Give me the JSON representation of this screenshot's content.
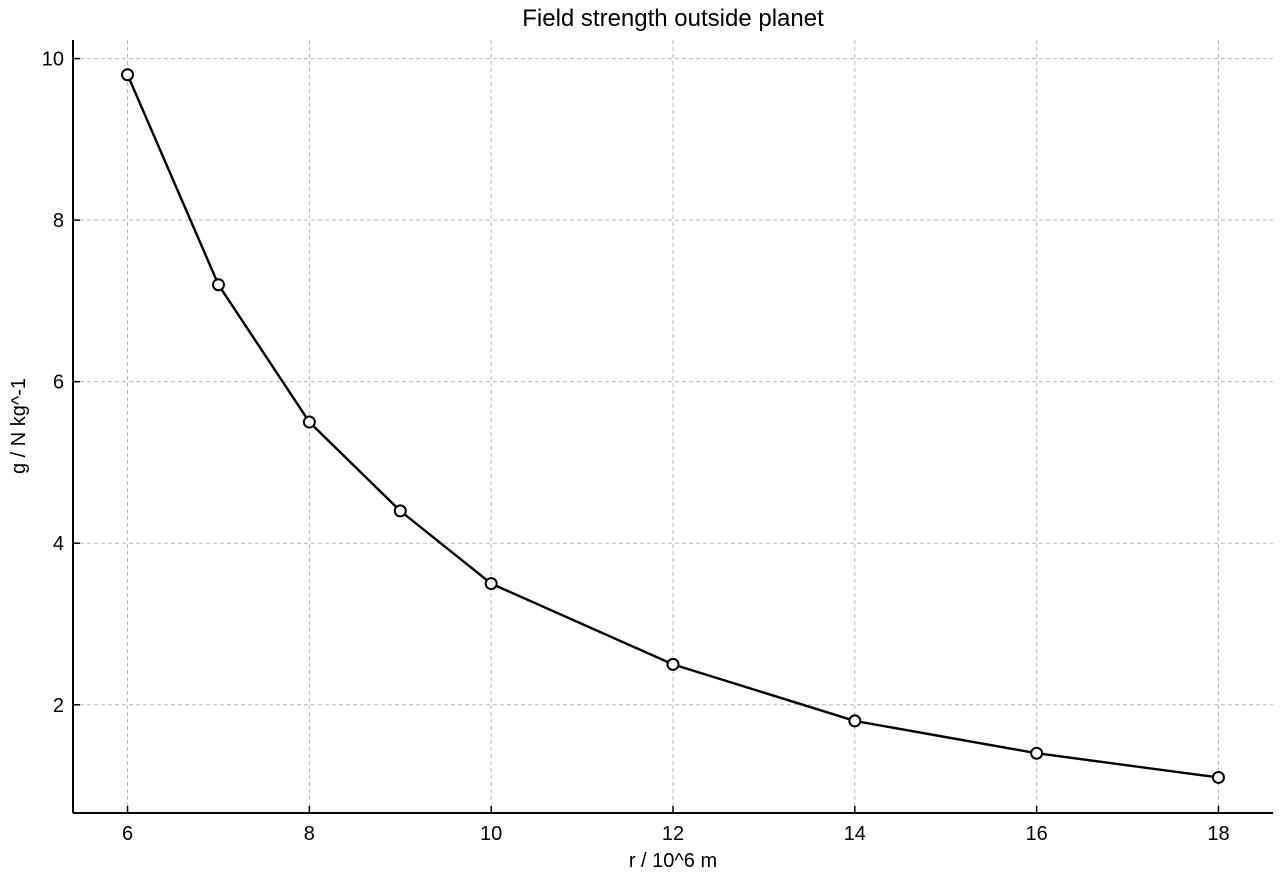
{
  "chart_data": {
    "type": "line",
    "title": "Field strength outside planet",
    "xlabel": "r / 10^6 m",
    "ylabel": "g / N kg^-1",
    "xlim": [
      5.4,
      18.6
    ],
    "ylim": [
      0.66,
      10.23
    ],
    "xticks": [
      6,
      8,
      10,
      12,
      14,
      16,
      18
    ],
    "yticks": [
      2,
      4,
      6,
      8,
      10
    ],
    "grid": true,
    "series": [
      {
        "x": [
          6,
          7,
          8,
          9,
          10,
          12,
          14,
          16,
          18
        ],
        "y": [
          9.8,
          7.2,
          5.5,
          4.4,
          3.5,
          2.5,
          1.8,
          1.4,
          1.1
        ],
        "color": "#000000",
        "marker": "circle-open"
      }
    ]
  }
}
